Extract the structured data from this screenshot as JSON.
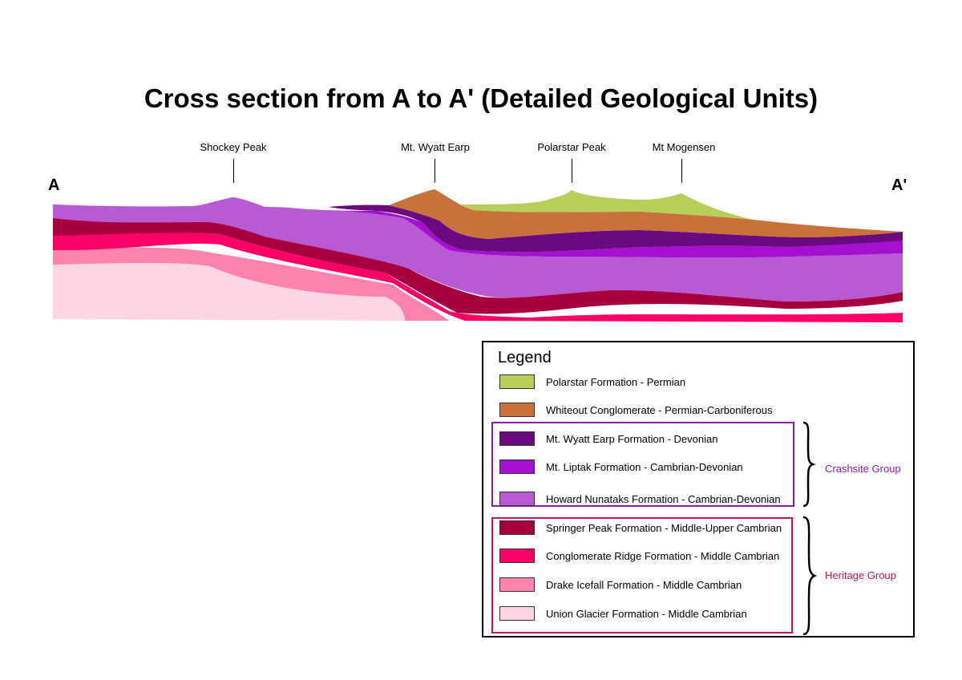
{
  "title": "Cross section from A to A' (Detailed Geological Units)",
  "ends": {
    "left": "A",
    "right": "A'"
  },
  "peaks": [
    {
      "name": "Shockey Peak"
    },
    {
      "name": "Mt. Wyatt Earp"
    },
    {
      "name": "Polarstar Peak"
    },
    {
      "name": "Mt Mogensen"
    }
  ],
  "legend": {
    "title": "Legend",
    "items": [
      {
        "label": "Polarstar Formation - Permian",
        "color": "#b5cf5a"
      },
      {
        "label": "Whiteout Conglomerate - Permian-Carboniferous",
        "color": "#c9713a"
      },
      {
        "label": "Mt. Wyatt Earp Formation - Devonian",
        "color": "#6b0a7e"
      },
      {
        "label": "Mt. Liptak Formation - Cambrian-Devonian",
        "color": "#a40fd0"
      },
      {
        "label": "Howard Nunataks Formation - Cambrian-Devonian",
        "color": "#b75ad4"
      },
      {
        "label": "Springer Peak Formation - Middle-Upper Cambrian",
        "color": "#a8003e"
      },
      {
        "label": "Conglomerate Ridge Formation - Middle Cambrian",
        "color": "#fb0067"
      },
      {
        "label": "Drake Icefall Formation - Middle Cambrian",
        "color": "#fd82ad"
      },
      {
        "label": "Union Glacier Formation - Middle Cambrian",
        "color": "#fdd5e3"
      }
    ],
    "groups": [
      {
        "label": "Crashsite Group",
        "color": "#8e1ab0"
      },
      {
        "label": "Heritage Group",
        "color": "#c0165e"
      }
    ]
  }
}
